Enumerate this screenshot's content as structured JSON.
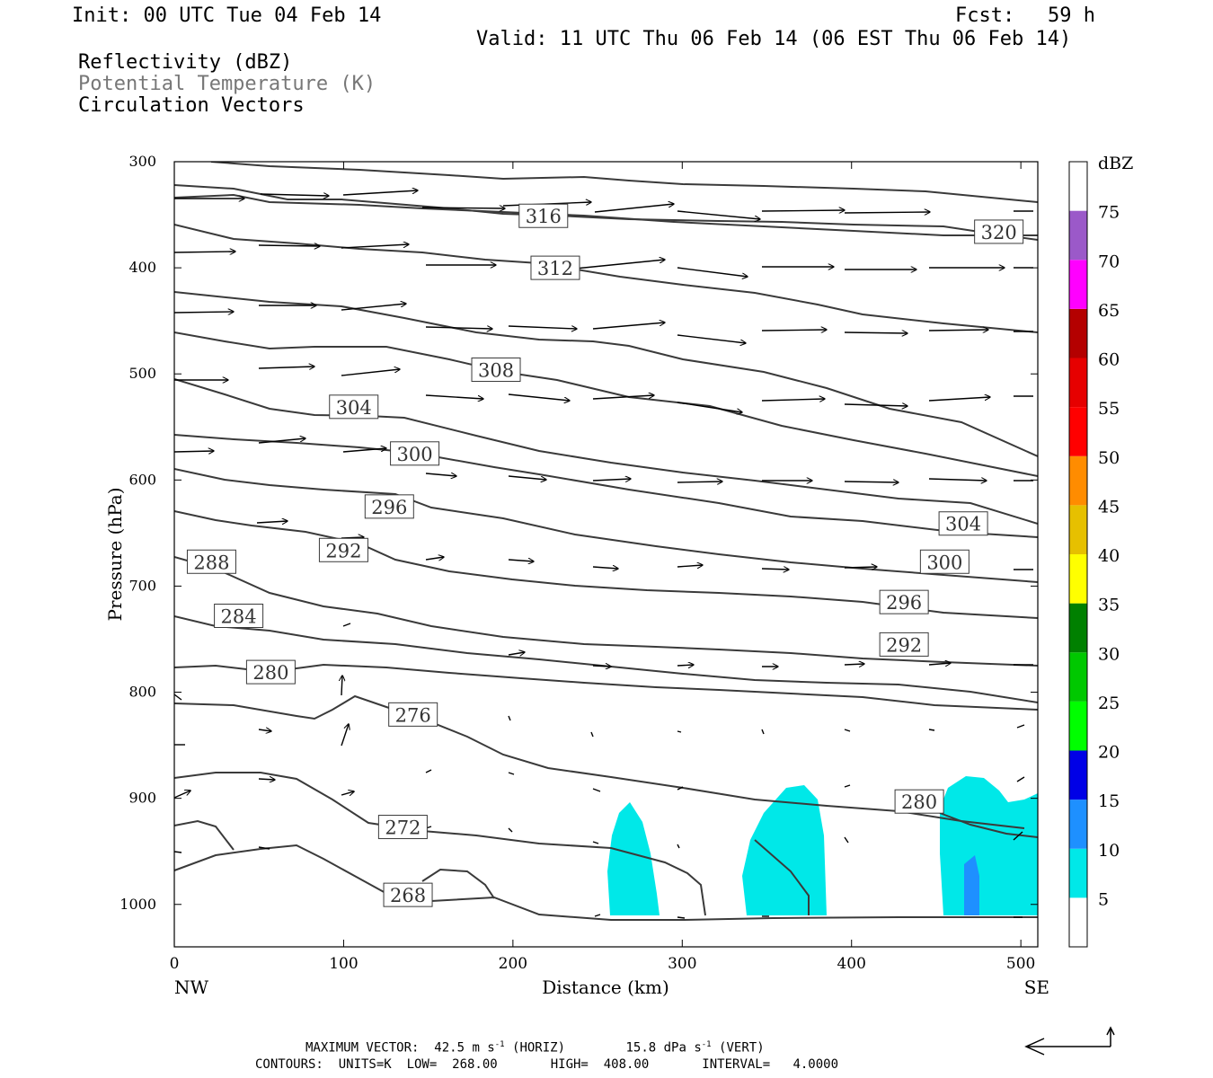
{
  "header": {
    "init": "Init: 00 UTC Tue 04 Feb 14",
    "fcst_label": "Fcst:",
    "fcst_value": "59 h",
    "valid": "Valid: 11 UTC Thu 06 Feb 14 (06 EST Thu 06 Feb 14)",
    "field1": "Reflectivity (dBZ)",
    "field2": "Potential Temperature (K)",
    "field3": "Circulation Vectors"
  },
  "footer": {
    "max_vector_label": "MAXIMUM VECTOR:",
    "horiz_value": "42.5 m s",
    "horiz_unit": "(HORIZ)",
    "vert_value": "15.8 dPa s",
    "vert_unit": "(VERT)",
    "exp": "-1",
    "contours": "CONTOURS:  UNITS=K  LOW=  268.00       HIGH=  408.00       INTERVAL=   4.0000"
  },
  "colors": {
    "contour": "#3a3a3a",
    "cyan": "#00e8e8",
    "blue10": "#1e90ff"
  },
  "chart_data": {
    "type": "contour",
    "xlabel": "Distance (km)",
    "ylabel": "Pressure (hPa)",
    "xlim": [
      0,
      510
    ],
    "ylim": [
      1040,
      300
    ],
    "x_ticks": [
      0,
      100,
      200,
      300,
      400,
      500
    ],
    "y_ticks": [
      300,
      400,
      500,
      600,
      700,
      800,
      900,
      1000
    ],
    "x_end_labels": {
      "left": "NW",
      "right": "SE"
    },
    "colorbar": {
      "unit": "dBZ",
      "levels": [
        "5",
        "10",
        "15",
        "20",
        "25",
        "30",
        "35",
        "40",
        "45",
        "50",
        "55",
        "60",
        "65",
        "70",
        "75"
      ],
      "colors": [
        "#00e8e8",
        "#1e90ff",
        "#0000e6",
        "#00ff00",
        "#00c800",
        "#008000",
        "#ffff00",
        "#e6c000",
        "#ff8c00",
        "#ff0000",
        "#e60000",
        "#b40000",
        "#ff00ff",
        "#9b59c9"
      ]
    },
    "contour_labels": [
      {
        "text": "316",
        "x": 218,
        "p": 351
      },
      {
        "text": "320",
        "x": 487,
        "p": 366
      },
      {
        "text": "312",
        "x": 225,
        "p": 400
      },
      {
        "text": "308",
        "x": 190,
        "p": 496
      },
      {
        "text": "304",
        "x": 106,
        "p": 531
      },
      {
        "text": "300",
        "x": 142,
        "p": 575
      },
      {
        "text": "296",
        "x": 127,
        "p": 625
      },
      {
        "text": "304",
        "x": 466,
        "p": 641
      },
      {
        "text": "292",
        "x": 100,
        "p": 666
      },
      {
        "text": "288",
        "x": 22,
        "p": 677
      },
      {
        "text": "300",
        "x": 455,
        "p": 677
      },
      {
        "text": "296",
        "x": 431,
        "p": 715
      },
      {
        "text": "284",
        "x": 38,
        "p": 728
      },
      {
        "text": "292",
        "x": 431,
        "p": 755
      },
      {
        "text": "280",
        "x": 57,
        "p": 781
      },
      {
        "text": "276",
        "x": 141,
        "p": 821
      },
      {
        "text": "280",
        "x": 440,
        "p": 903
      },
      {
        "text": "272",
        "x": 135,
        "p": 927
      },
      {
        "text": "268",
        "x": 138,
        "p": 991
      }
    ]
  }
}
